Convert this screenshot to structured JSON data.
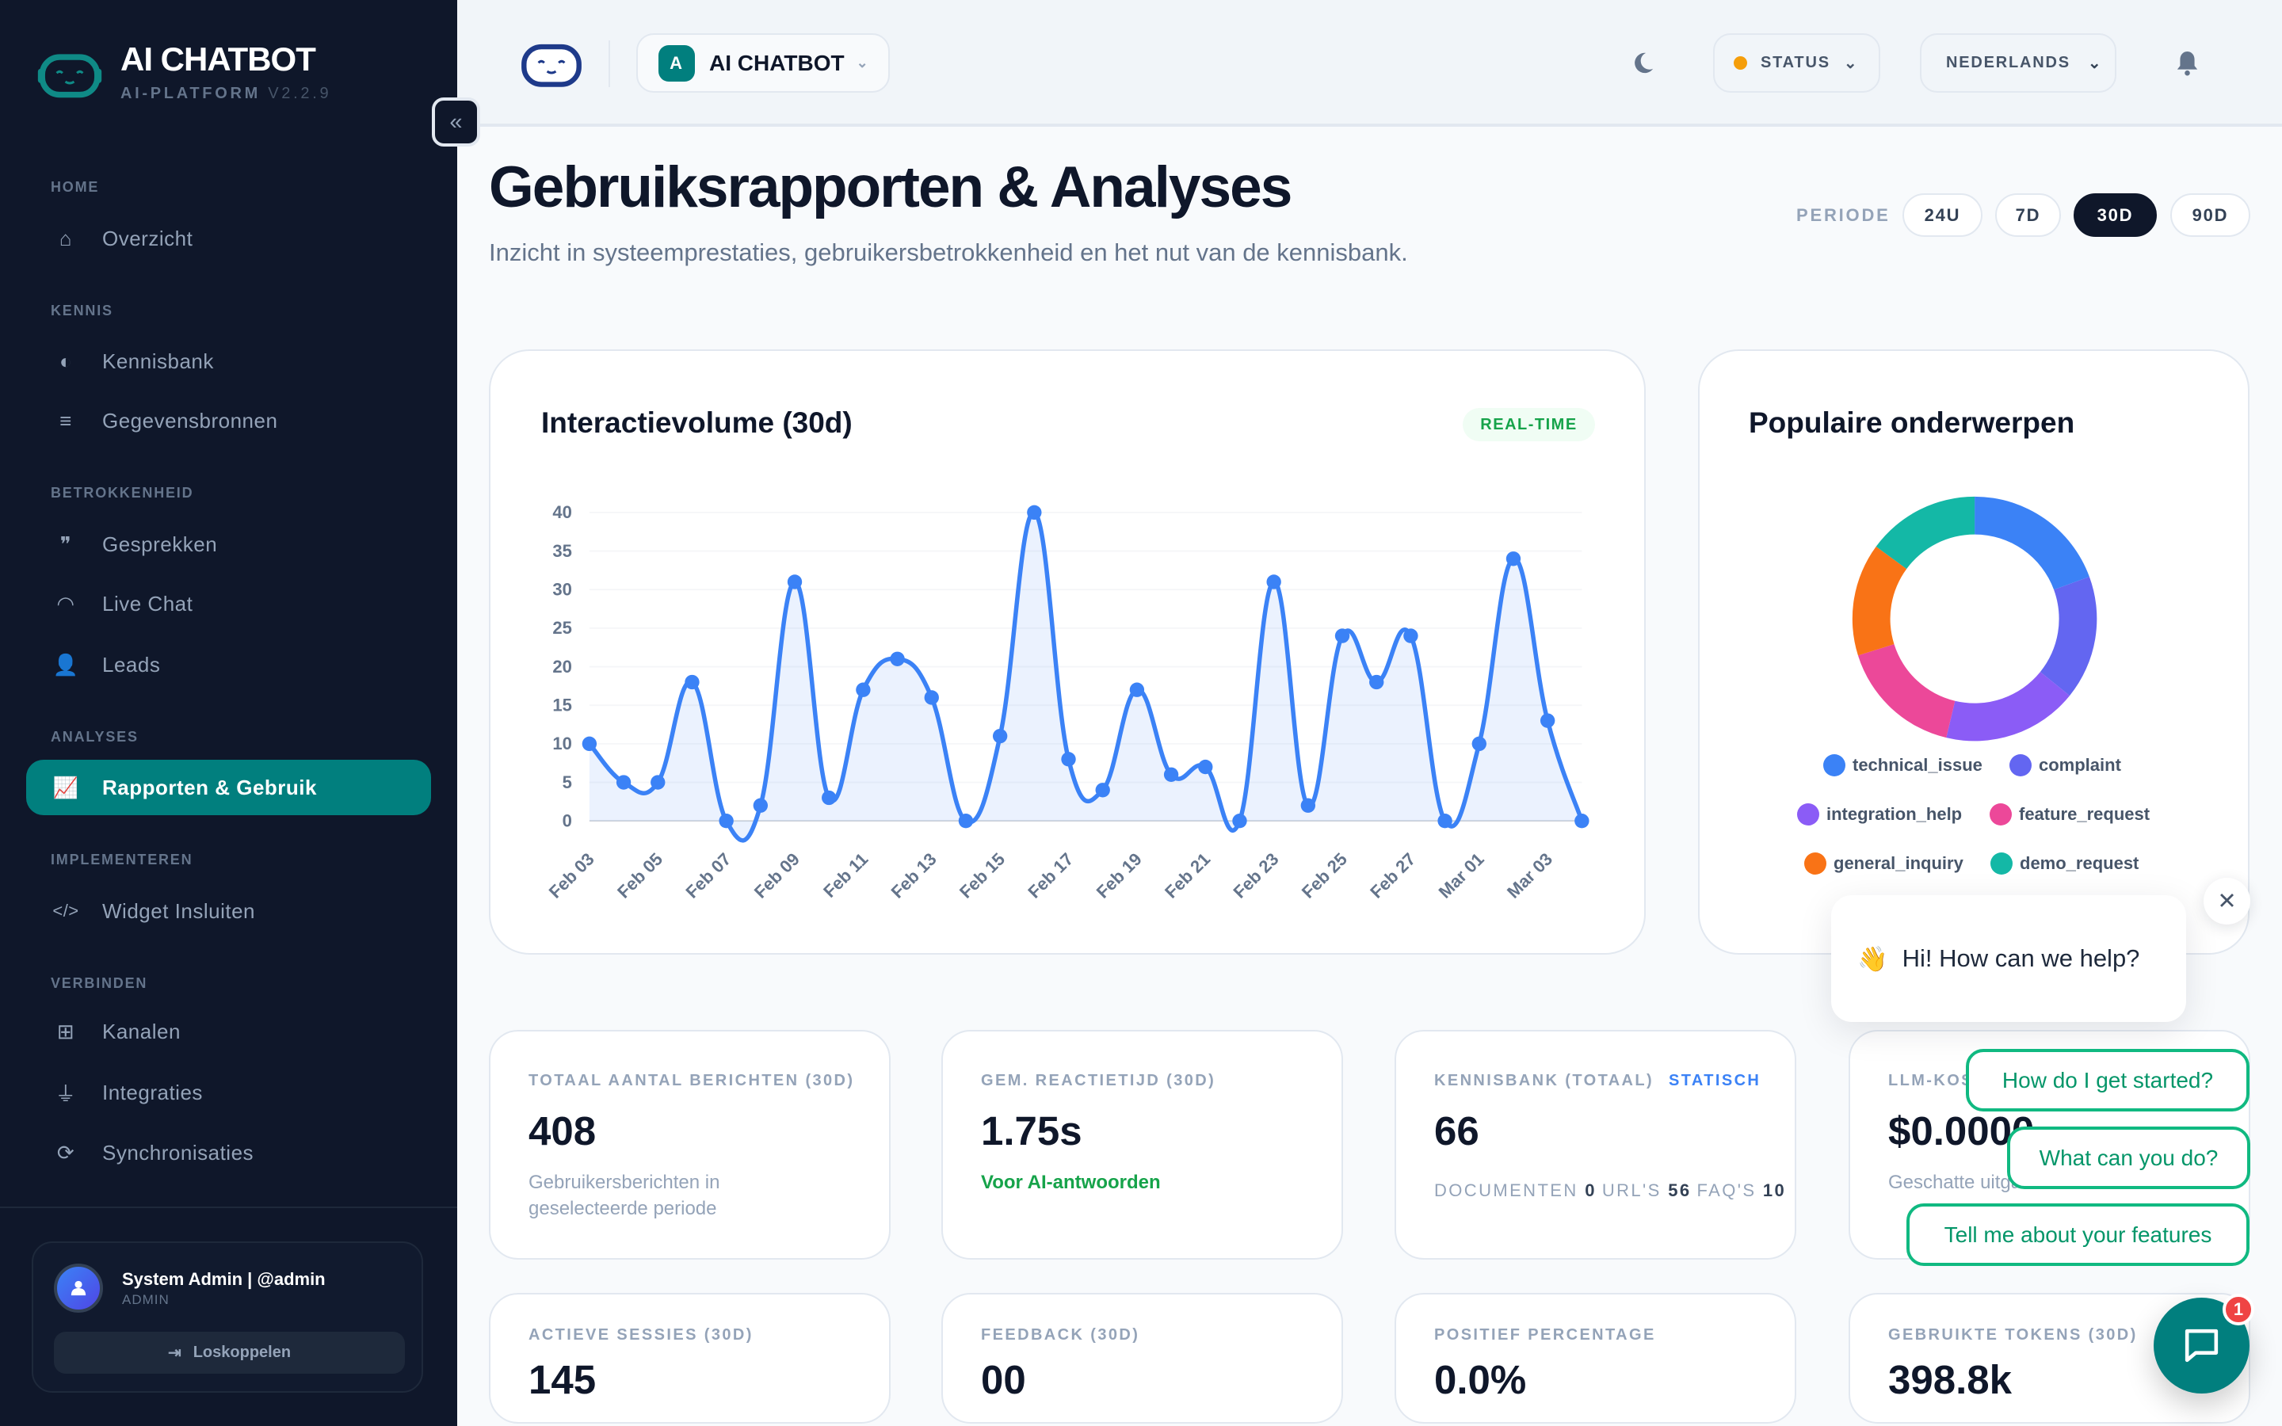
{
  "brand": {
    "title": "AI CHATBOT",
    "subtitle": "AI-PLATFORM",
    "version": "V2.2.9"
  },
  "sidebar": {
    "sections": [
      {
        "label": "HOME",
        "items": [
          {
            "label": "Overzicht",
            "icon": "home-icon"
          }
        ]
      },
      {
        "label": "KENNIS",
        "items": [
          {
            "label": "Kennisbank",
            "icon": "brain-icon"
          },
          {
            "label": "Gegevensbronnen",
            "icon": "database-icon"
          }
        ]
      },
      {
        "label": "BETROKKENHEID",
        "items": [
          {
            "label": "Gesprekken",
            "icon": "comments-icon"
          },
          {
            "label": "Live Chat",
            "icon": "headset-icon"
          },
          {
            "label": "Leads",
            "icon": "user-tag-icon"
          }
        ]
      },
      {
        "label": "ANALYSES",
        "items": [
          {
            "label": "Rapporten & Gebruik",
            "icon": "chart-line-icon",
            "active": true
          }
        ]
      },
      {
        "label": "IMPLEMENTEREN",
        "items": [
          {
            "label": "Widget Insluiten",
            "icon": "code-icon"
          }
        ]
      },
      {
        "label": "VERBINDEN",
        "items": [
          {
            "label": "Kanalen",
            "icon": "network-icon"
          },
          {
            "label": "Integraties",
            "icon": "plug-icon"
          },
          {
            "label": "Synchronisaties",
            "icon": "sync-icon"
          }
        ]
      }
    ],
    "user": {
      "name": "System Admin | @admin",
      "role": "ADMIN",
      "logout": "Loskoppelen"
    }
  },
  "header": {
    "workspace_badge": "A",
    "workspace": "AI CHATBOT",
    "status": "STATUS",
    "status_color": "#f59e0b",
    "language": "NEDERLANDS"
  },
  "page": {
    "title": "Gebruiksrapporten & Analyses",
    "subtitle": "Inzicht in systeemprestaties, gebruikersbetrokkenheid en het nut van de kennisbank.",
    "period_label": "PERIODE",
    "periods": [
      "24U",
      "7D",
      "30D",
      "90D"
    ],
    "active_period": "30D"
  },
  "volume_card": {
    "title": "Interactievolume (30d)",
    "badge": "REAL-TIME"
  },
  "topics_card": {
    "title": "Populaire onderwerpen"
  },
  "chart_data": [
    {
      "type": "area",
      "title": "Interactievolume (30d)",
      "xlabel": "",
      "ylabel": "",
      "x": [
        "Feb 03",
        "Feb 04",
        "Feb 05",
        "Feb 06",
        "Feb 07",
        "Feb 08",
        "Feb 09",
        "Feb 10",
        "Feb 11",
        "Feb 12",
        "Feb 13",
        "Feb 14",
        "Feb 15",
        "Feb 16",
        "Feb 17",
        "Feb 18",
        "Feb 19",
        "Feb 20",
        "Feb 21",
        "Feb 22",
        "Feb 23",
        "Feb 24",
        "Feb 25",
        "Feb 26",
        "Feb 27",
        "Feb 28",
        "Mar 01",
        "Mar 02",
        "Mar 03",
        "Mar 04"
      ],
      "x_tick_labels": [
        "Feb 03",
        "Feb 05",
        "Feb 07",
        "Feb 09",
        "Feb 11",
        "Feb 13",
        "Feb 15",
        "Feb 17",
        "Feb 19",
        "Feb 21",
        "Feb 23",
        "Feb 25",
        "Feb 27",
        "Mar 01",
        "Mar 03"
      ],
      "y": [
        10,
        5,
        5,
        18,
        0,
        2,
        31,
        3,
        17,
        21,
        16,
        0,
        11,
        40,
        8,
        4,
        17,
        6,
        7,
        0,
        31,
        2,
        24,
        18,
        24,
        0,
        10,
        34,
        13,
        0
      ],
      "ylim": [
        0,
        40
      ],
      "y_ticks": [
        0,
        5,
        10,
        15,
        20,
        25,
        30,
        35,
        40
      ],
      "color": "#3b82f6",
      "grid": true
    },
    {
      "type": "pie",
      "variant": "donut",
      "title": "Populaire onderwerpen",
      "legend": "bottom",
      "categories": [
        "technical_issue",
        "complaint",
        "integration_help",
        "feature_request",
        "general_inquiry",
        "demo_request"
      ],
      "values": [
        13,
        11,
        12,
        11,
        10,
        10
      ],
      "colors": [
        "#3b82f6",
        "#6366f1",
        "#8b5cf6",
        "#ec4899",
        "#f97316",
        "#14b8a6"
      ]
    }
  ],
  "stats": [
    {
      "label": "TOTAAL AANTAL BERICHTEN (30D)",
      "value": "408",
      "sub": "Gebruikersberichten in geselecteerde periode"
    },
    {
      "label": "GEM. REACTIETIJD (30D)",
      "value": "1.75s",
      "sub": "Voor AI-antwoorden"
    },
    {
      "label": "KENNISBANK (TOTAAL)",
      "tag": "STATISCH",
      "value": "66",
      "breakdown": [
        {
          "k": "DOCUMENTEN",
          "v": "0"
        },
        {
          "k": "URL'S",
          "v": "56"
        },
        {
          "k": "FAQ'S",
          "v": "10"
        }
      ]
    },
    {
      "label": "LLM-KOSTEN",
      "value": "$0.0000",
      "sub": "Geschatte uitgaven"
    },
    {
      "label": "ACTIEVE SESSIES (30D)",
      "value": "145"
    },
    {
      "label": "FEEDBACK (30D)",
      "value": "00"
    },
    {
      "label": "POSITIEF PERCENTAGE",
      "value": "0.0%"
    },
    {
      "label": "GEBRUIKTE TOKENS (30D)",
      "value": "398.8k"
    }
  ],
  "chat": {
    "greeting": "Hi! How can we help?",
    "wave": "👋",
    "suggestions": [
      "How do I get started?",
      "What can you do?",
      "Tell me about your features"
    ],
    "unread": "1"
  }
}
